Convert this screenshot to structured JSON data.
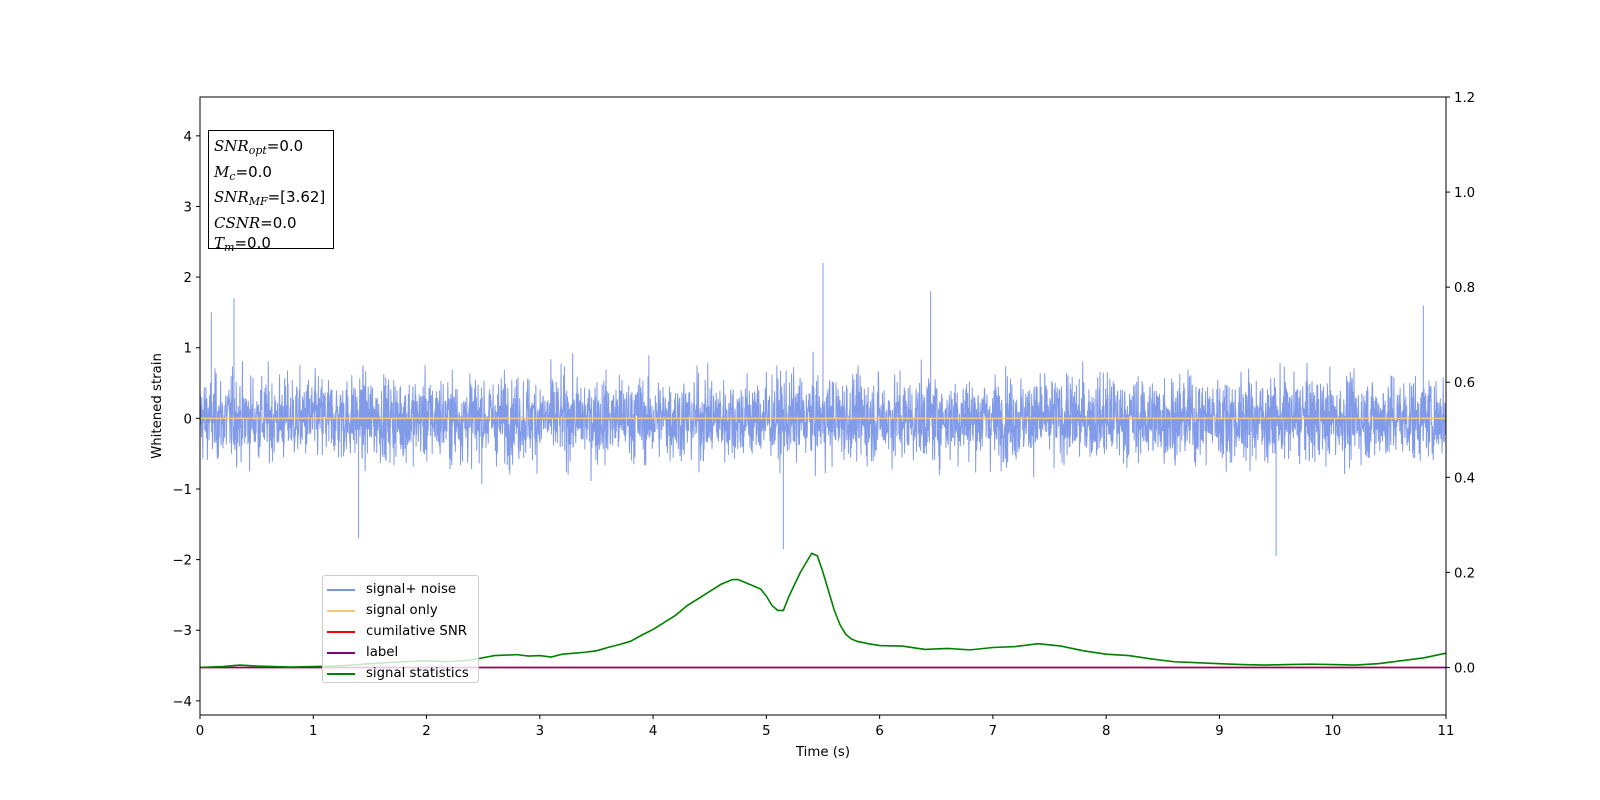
{
  "chart_data": {
    "type": "line",
    "xlabel": "Time (s)",
    "ylabel": "Whitened strain",
    "xlim": [
      0,
      11
    ],
    "ylim_left": [
      -4.2,
      4.55
    ],
    "ylim_right": [
      -0.1,
      1.2
    ],
    "x_ticks": [
      "0",
      "1",
      "2",
      "3",
      "4",
      "5",
      "6",
      "7",
      "8",
      "9",
      "10",
      "11"
    ],
    "y_left_ticks": [
      "4",
      "3",
      "2",
      "1",
      "0",
      "−1",
      "−2",
      "−3",
      "−4"
    ],
    "y_right_ticks": [
      "1.2",
      "1.0",
      "0.8",
      "0.6",
      "0.4",
      "0.2",
      "0.0"
    ],
    "grid": false,
    "legend_position": "lower-left",
    "series": [
      {
        "name": "signal+ noise",
        "color": "#7b96e8",
        "axis": "left",
        "description_values": {
          "amplitude_typical": 0.85,
          "spikes": [
            [
              0.1,
              1.5
            ],
            [
              0.3,
              1.7
            ],
            [
              1.4,
              -1.7
            ],
            [
              5.5,
              2.2
            ],
            [
              5.15,
              -1.85
            ],
            [
              6.45,
              1.8
            ],
            [
              9.5,
              -1.95
            ],
            [
              10.8,
              1.6
            ]
          ]
        }
      },
      {
        "name": "signal only",
        "color": "#f5c77a",
        "axis": "left",
        "values_const": 0.0
      },
      {
        "name": "cumilative SNR",
        "color": "#ff0000",
        "axis": "right",
        "values_const": 0.0
      },
      {
        "name": "label",
        "color": "#800080",
        "axis": "right",
        "values_const": 0.0
      },
      {
        "name": "signal statistics",
        "color": "#008000",
        "axis": "right",
        "x": [
          0,
          0.2,
          0.35,
          0.5,
          0.8,
          1.0,
          1.2,
          1.5,
          1.8,
          2.0,
          2.2,
          2.4,
          2.6,
          2.8,
          2.9,
          3.0,
          3.1,
          3.2,
          3.4,
          3.5,
          3.6,
          3.7,
          3.8,
          3.9,
          4.0,
          4.1,
          4.2,
          4.3,
          4.4,
          4.5,
          4.6,
          4.7,
          4.75,
          4.8,
          4.85,
          4.9,
          4.95,
          5.0,
          5.05,
          5.1,
          5.15,
          5.2,
          5.25,
          5.3,
          5.35,
          5.4,
          5.45,
          5.5,
          5.55,
          5.6,
          5.65,
          5.7,
          5.75,
          5.8,
          5.9,
          6.0,
          6.2,
          6.4,
          6.6,
          6.8,
          7.0,
          7.2,
          7.4,
          7.6,
          7.8,
          8.0,
          8.2,
          8.4,
          8.6,
          8.8,
          9.0,
          9.2,
          9.4,
          9.6,
          9.8,
          10.0,
          10.2,
          10.4,
          10.6,
          10.8,
          11.0
        ],
        "y": [
          0.0,
          0.002,
          0.005,
          0.003,
          0.001,
          0.002,
          0.003,
          0.008,
          0.012,
          0.014,
          0.012,
          0.016,
          0.025,
          0.027,
          0.024,
          0.025,
          0.022,
          0.028,
          0.032,
          0.035,
          0.042,
          0.048,
          0.055,
          0.068,
          0.08,
          0.095,
          0.11,
          0.13,
          0.145,
          0.16,
          0.175,
          0.185,
          0.185,
          0.18,
          0.175,
          0.17,
          0.165,
          0.15,
          0.13,
          0.12,
          0.12,
          0.15,
          0.175,
          0.2,
          0.22,
          0.24,
          0.235,
          0.2,
          0.16,
          0.12,
          0.09,
          0.07,
          0.06,
          0.055,
          0.05,
          0.046,
          0.045,
          0.038,
          0.04,
          0.037,
          0.042,
          0.044,
          0.05,
          0.045,
          0.035,
          0.028,
          0.025,
          0.018,
          0.012,
          0.01,
          0.008,
          0.006,
          0.005,
          0.006,
          0.007,
          0.006,
          0.005,
          0.008,
          0.014,
          0.02,
          0.03
        ]
      }
    ]
  },
  "info_box": {
    "snr_opt_sym": "SNR",
    "snr_opt_sub": "opt",
    "snr_opt_val": "=0.0",
    "mc_sym": "M",
    "mc_sub": "c",
    "mc_val": "=0.0",
    "snr_mf_sym": "SNR",
    "snr_mf_sub": "MF",
    "snr_mf_val": "=[3.62]",
    "csnr_sym": "CSNR",
    "csnr_val": "=0.0",
    "tm_sym": "T",
    "tm_sub": "m",
    "tm_val": "=0.0"
  },
  "legend": {
    "items": [
      {
        "label": "signal+ noise",
        "color": "#7b96e8"
      },
      {
        "label": "signal only",
        "color": "#f5c77a"
      },
      {
        "label": "cumilative SNR",
        "color": "#ff0000"
      },
      {
        "label": "label",
        "color": "#800080"
      },
      {
        "label": "signal statistics",
        "color": "#008000"
      }
    ]
  }
}
